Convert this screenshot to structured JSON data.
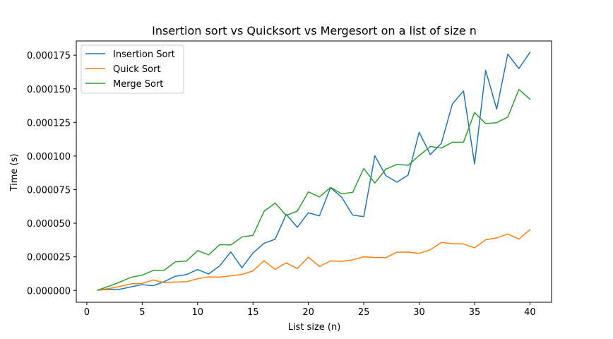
{
  "chart_data": {
    "type": "line",
    "title": "Insertion sort vs Quicksort vs Mergesort on a list of size n",
    "xlabel": "List size (n)",
    "ylabel": "Time (s)",
    "xlim": [
      -0.95,
      41.95
    ],
    "ylim": [
      -8.8e-06,
      0.0001856
    ],
    "xticks": [
      0,
      5,
      10,
      15,
      20,
      25,
      30,
      35,
      40
    ],
    "xtick_labels": [
      "0",
      "5",
      "10",
      "15",
      "20",
      "25",
      "30",
      "35",
      "40"
    ],
    "yticks": [
      0,
      2.5e-05,
      5e-05,
      7.5e-05,
      0.0001,
      0.000125,
      0.00015,
      0.000175
    ],
    "ytick_labels": [
      "0.000000",
      "0.000025",
      "0.000050",
      "0.000075",
      "0.000100",
      "0.000125",
      "0.000150",
      "0.000175"
    ],
    "grid": false,
    "legend_position": "top-left",
    "x": [
      1,
      2,
      3,
      4,
      5,
      6,
      7,
      8,
      9,
      10,
      11,
      12,
      13,
      14,
      15,
      16,
      17,
      18,
      19,
      20,
      21,
      22,
      23,
      24,
      25,
      26,
      27,
      28,
      29,
      30,
      31,
      32,
      33,
      34,
      35,
      36,
      37,
      38,
      39,
      40
    ],
    "series": [
      {
        "name": "Insertion Sort",
        "color": "#1f77b4",
        "values": [
          2e-07,
          8e-07,
          9e-07,
          2.7e-06,
          4.3e-06,
          3.5e-06,
          6.6e-06,
          1.06e-05,
          1.18e-05,
          1.56e-05,
          1.22e-05,
          1.83e-05,
          2.87e-05,
          1.69e-05,
          2.79e-05,
          3.51e-05,
          3.81e-05,
          5.66e-05,
          4.7e-05,
          5.78e-05,
          5.55e-05,
          7.65e-05,
          6.94e-05,
          5.61e-05,
          5.49e-05,
          0.0001002,
          8.53e-05,
          8.06e-05,
          8.58e-05,
          0.0001177,
          0.0001011,
          0.0001094,
          0.0001388,
          0.0001484,
          9.41e-05,
          0.0001637,
          0.0001349,
          0.0001758,
          0.0001651,
          0.0001771
        ]
      },
      {
        "name": "Quick Sort",
        "color": "#ff7f0e",
        "values": [
          3e-07,
          1.4e-06,
          3e-06,
          4.9e-06,
          5.2e-06,
          7.8e-06,
          5.8e-06,
          6.3e-06,
          6.5e-06,
          8.7e-06,
          1.01e-05,
          9.9e-06,
          1.09e-05,
          1.19e-05,
          1.45e-05,
          2.21e-05,
          1.57e-05,
          2.05e-05,
          1.63e-05,
          2.48e-05,
          1.78e-05,
          2.2e-05,
          2.16e-05,
          2.27e-05,
          2.51e-05,
          2.45e-05,
          2.44e-05,
          2.85e-05,
          2.85e-05,
          2.76e-05,
          3.03e-05,
          3.57e-05,
          3.48e-05,
          3.46e-05,
          3.17e-05,
          3.77e-05,
          3.91e-05,
          4.2e-05,
          3.82e-05,
          4.52e-05
        ]
      },
      {
        "name": "Merge Sort",
        "color": "#2ca02c",
        "values": [
          3e-07,
          3.1e-06,
          6.3e-06,
          9.8e-06,
          1.14e-05,
          1.49e-05,
          1.51e-05,
          2.13e-05,
          2.19e-05,
          2.96e-05,
          2.65e-05,
          3.41e-05,
          3.38e-05,
          3.97e-05,
          4.1e-05,
          5.89e-05,
          6.5e-05,
          5.58e-05,
          5.9e-05,
          7.33e-05,
          6.95e-05,
          7.67e-05,
          7.19e-05,
          7.3e-05,
          9.08e-05,
          7.99e-05,
          9.03e-05,
          9.38e-05,
          9.31e-05,
          0.0001003,
          0.0001071,
          0.0001059,
          0.0001103,
          0.0001103,
          0.0001324,
          0.0001241,
          0.0001248,
          0.000129,
          0.0001495,
          0.0001423
        ]
      }
    ]
  }
}
